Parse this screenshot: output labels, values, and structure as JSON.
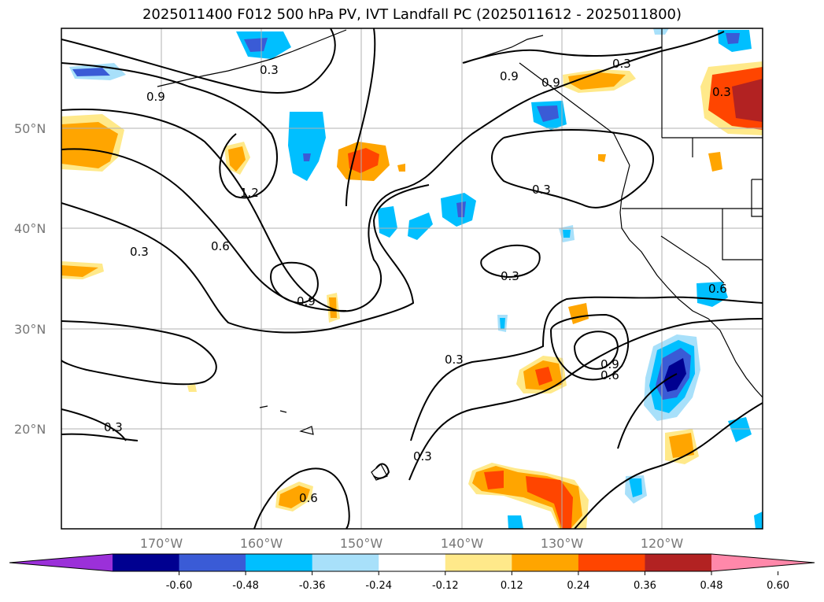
{
  "title": "2025011400 F012 500 hPa PV, IVT Landfall PC (2025011612 - 2025011800)",
  "lat_labels": [
    "50°N",
    "40°N",
    "30°N",
    "20°N"
  ],
  "lon_labels": [
    "170°W",
    "160°W",
    "150°W",
    "140°W",
    "130°W",
    "120°W"
  ],
  "colorbar": {
    "colors": [
      "#9b30d9",
      "#000090",
      "#3a5bd6",
      "#00bfff",
      "#a8e0fa",
      "#ffffff",
      "#ffe98a",
      "#ffa500",
      "#ff4500",
      "#b22222",
      "#ff88aa"
    ],
    "ticks": [
      "-0.60",
      "-0.48",
      "-0.36",
      "-0.24",
      "-0.12",
      "0.12",
      "0.24",
      "0.36",
      "0.48",
      "0.60"
    ]
  },
  "contour_labels": [
    "0.3",
    "0.9",
    "0.9",
    "0.3",
    "0.3",
    "0.9",
    "1.2",
    "0.6",
    "0.3",
    "0.9",
    "0.3",
    "0.3",
    "0.6",
    "0.9",
    "0.3",
    "0.3",
    "0.3",
    "0.6",
    "0.6"
  ]
}
